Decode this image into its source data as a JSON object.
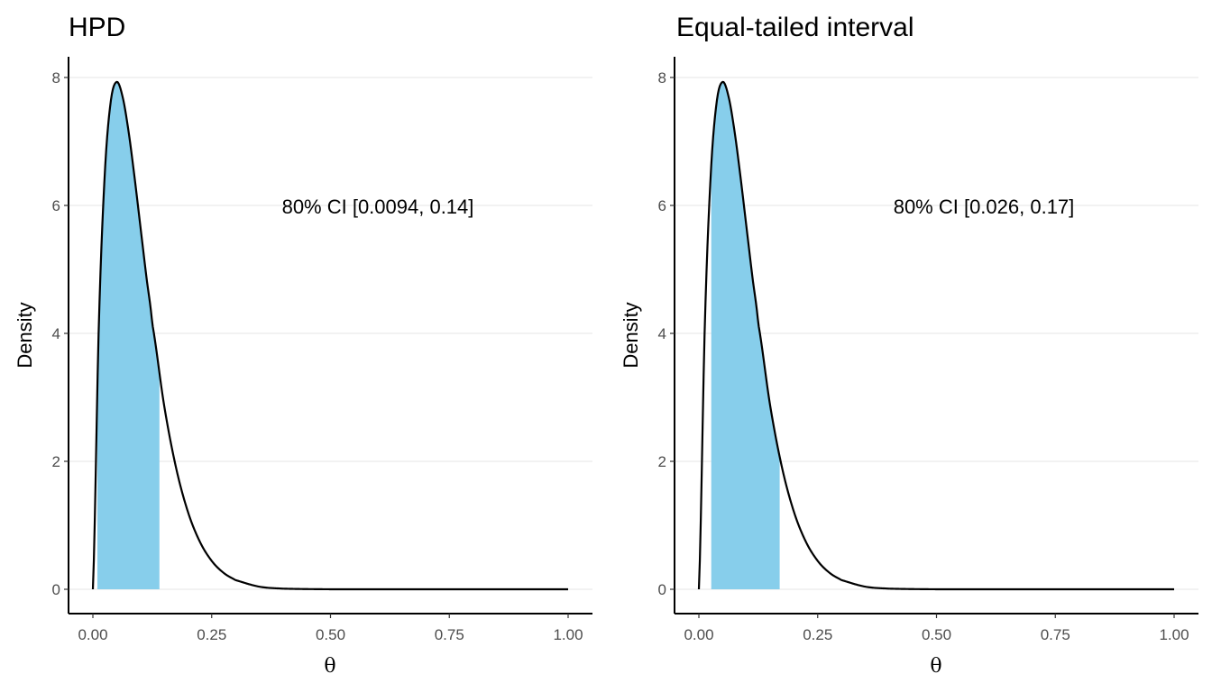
{
  "chart_data": [
    {
      "type": "area",
      "title": "HPD",
      "xlabel": "θ",
      "ylabel": "Density",
      "xlim": [
        0,
        1
      ],
      "ylim": [
        0,
        8
      ],
      "xticks": [
        "0.00",
        "0.25",
        "0.50",
        "0.75",
        "1.00"
      ],
      "yticks": [
        "0",
        "2",
        "4",
        "6",
        "8"
      ],
      "grid": "horizontal major",
      "annotation": {
        "text": "80% CI [0.0094, 0.14]",
        "x": 0.6,
        "y": 6
      },
      "interval": [
        0.0094,
        0.14
      ],
      "fill_color": "#87CEEB",
      "line_color": "#000000",
      "x": [
        0,
        0.0125,
        0.025,
        0.0375,
        0.05,
        0.0625,
        0.075,
        0.0875,
        0.1,
        0.1125,
        0.125,
        0.15,
        0.175,
        0.2,
        0.225,
        0.25,
        0.275,
        0.3,
        0.35,
        0.4,
        0.5,
        0.6,
        0.75,
        1.0
      ],
      "y": [
        0,
        4.13,
        6.49,
        7.62,
        7.93,
        7.7,
        7.16,
        6.45,
        5.67,
        4.89,
        4.15,
        2.87,
        1.9,
        1.21,
        0.745,
        0.444,
        0.257,
        0.144,
        0.041,
        0.01,
        0.0004,
        0,
        0,
        0
      ]
    },
    {
      "type": "area",
      "title": "Equal-tailed interval",
      "xlabel": "θ",
      "ylabel": "Density",
      "xlim": [
        0,
        1
      ],
      "ylim": [
        0,
        8
      ],
      "xticks": [
        "0.00",
        "0.25",
        "0.50",
        "0.75",
        "1.00"
      ],
      "yticks": [
        "0",
        "2",
        "4",
        "6",
        "8"
      ],
      "grid": "horizontal major",
      "annotation": {
        "text": "80% CI [0.026, 0.17]",
        "x": 0.6,
        "y": 6
      },
      "interval": [
        0.026,
        0.17
      ],
      "fill_color": "#87CEEB",
      "line_color": "#000000",
      "x": [
        0,
        0.0125,
        0.025,
        0.0375,
        0.05,
        0.0625,
        0.075,
        0.0875,
        0.1,
        0.1125,
        0.125,
        0.15,
        0.175,
        0.2,
        0.225,
        0.25,
        0.275,
        0.3,
        0.35,
        0.4,
        0.5,
        0.6,
        0.75,
        1.0
      ],
      "y": [
        0,
        4.13,
        6.49,
        7.62,
        7.93,
        7.7,
        7.16,
        6.45,
        5.67,
        4.89,
        4.15,
        2.87,
        1.9,
        1.21,
        0.745,
        0.444,
        0.257,
        0.144,
        0.041,
        0.01,
        0.0004,
        0,
        0,
        0
      ]
    }
  ]
}
